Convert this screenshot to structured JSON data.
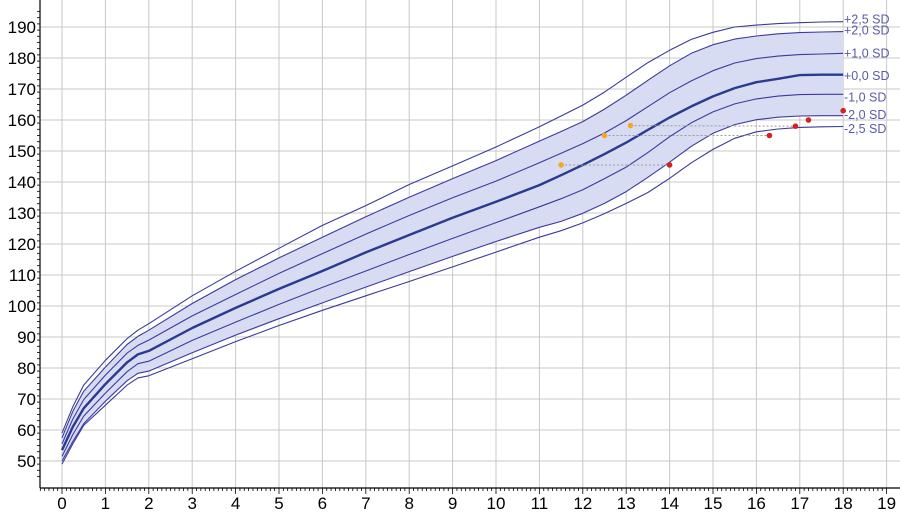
{
  "chart_data": {
    "type": "line",
    "title": "",
    "xlabel": "",
    "ylabel": "",
    "xlim": [
      -0.5,
      19
    ],
    "ylim": [
      45,
      195
    ],
    "x_ticks": [
      "0",
      "1",
      "2",
      "3",
      "4",
      "5",
      "6",
      "7",
      "8",
      "9",
      "10",
      "11",
      "12",
      "13",
      "14",
      "15",
      "16",
      "17",
      "18",
      "19"
    ],
    "y_ticks": [
      "50",
      "60",
      "70",
      "80",
      "90",
      "100",
      "110",
      "120",
      "130",
      "140",
      "150",
      "160",
      "170",
      "180",
      "190"
    ],
    "grid": true,
    "shaded_band": "-2,0 SD to +2,0 SD",
    "colors": {
      "curve": "#3a3a9c",
      "median": "#2a3a90",
      "band": "#d8dcf2",
      "grid": "#c8c8c8",
      "orange_point": "#f5a623",
      "red_point": "#d42020",
      "guide": "#9a9a9a"
    },
    "x": [
      0,
      0.25,
      0.5,
      1,
      1.5,
      1.75,
      2,
      3,
      4,
      5,
      6,
      7,
      8,
      9,
      10,
      11,
      11.5,
      12,
      12.5,
      13,
      13.5,
      14,
      14.5,
      15,
      15.5,
      16,
      16.5,
      17,
      17.5,
      18
    ],
    "series": [
      {
        "name": "+2,5 SD",
        "values": [
          59,
          67.5,
          74.5,
          82.5,
          89.5,
          92.2,
          94.3,
          103.3,
          111.2,
          118.6,
          126,
          132.4,
          139.2,
          145.2,
          151.3,
          157.8,
          161.3,
          164.8,
          169,
          173.8,
          178.5,
          182.5,
          186,
          188.3,
          190,
          190.6,
          191.1,
          191.4,
          191.6,
          191.7
        ]
      },
      {
        "name": "+2,0 SD",
        "values": [
          57.5,
          66,
          72.5,
          80.3,
          87.6,
          90.2,
          92.2,
          100.8,
          108.5,
          115.5,
          122.2,
          128.8,
          135.1,
          141.1,
          146.9,
          153.2,
          156.3,
          159.5,
          163.5,
          168,
          172.8,
          177.5,
          181.5,
          184.3,
          186.1,
          187.1,
          187.8,
          188.2,
          188.4,
          188.5
        ]
      },
      {
        "name": "+1,0 SD",
        "values": [
          55.5,
          63.5,
          69.8,
          77.7,
          84.8,
          87.3,
          89,
          96.8,
          103.7,
          110.5,
          116.9,
          123.2,
          129.2,
          134.9,
          140.3,
          146.2,
          149.3,
          152.4,
          155.8,
          159.8,
          164.3,
          168.8,
          172.6,
          175.9,
          178.4,
          179.8,
          180.6,
          181.1,
          181.3,
          181.5
        ]
      },
      {
        "name": "+0,0 SD",
        "values": [
          53.5,
          61,
          67,
          74.8,
          81.8,
          84.4,
          85.5,
          92.9,
          99.4,
          105.5,
          111.3,
          117.3,
          122.9,
          128.5,
          133.6,
          139,
          142.2,
          145.5,
          149,
          152.7,
          156.8,
          160.8,
          164.4,
          167.6,
          170.3,
          172.2,
          173.3,
          174.5,
          174.6,
          174.6
        ]
      },
      {
        "name": "-1,0 SD",
        "values": [
          51.5,
          58.5,
          64.5,
          71.9,
          78.8,
          81.4,
          82.2,
          88.9,
          94.8,
          100.5,
          106,
          111.3,
          116.6,
          121.8,
          126.9,
          132,
          134.6,
          137.5,
          141.1,
          144.8,
          149.5,
          154.6,
          159.1,
          162.6,
          165.2,
          166.8,
          167.7,
          168.2,
          168.3,
          168.3
        ]
      },
      {
        "name": "-2,0 SD",
        "values": [
          50,
          56.3,
          62,
          69.3,
          75.9,
          78.3,
          79,
          84.9,
          90.6,
          95.9,
          101,
          106.1,
          111.1,
          116,
          120.8,
          125.4,
          127.3,
          129.9,
          133.1,
          136.9,
          141.5,
          146.4,
          151.5,
          155.7,
          158.5,
          160.1,
          160.9,
          161.3,
          161.4,
          161.4
        ]
      },
      {
        "name": "-2,5 SD",
        "values": [
          49,
          55.5,
          61.5,
          68,
          74.5,
          76.8,
          77.5,
          83,
          88.5,
          93.7,
          98.6,
          103.3,
          107.9,
          112.6,
          117.4,
          122.2,
          124.3,
          126.8,
          129.8,
          133.1,
          136.6,
          141.2,
          146.2,
          150.5,
          154.1,
          156.2,
          157.1,
          157.6,
          157.8,
          157.9
        ]
      }
    ],
    "points_orange": [
      {
        "x": 11.5,
        "y": 145.5
      },
      {
        "x": 12.5,
        "y": 155
      },
      {
        "x": 13.1,
        "y": 158.2
      }
    ],
    "points_red": [
      {
        "x": 14,
        "y": 145.5
      },
      {
        "x": 16.3,
        "y": 155
      },
      {
        "x": 16.9,
        "y": 158
      },
      {
        "x": 17.2,
        "y": 160
      },
      {
        "x": 18,
        "y": 163
      }
    ],
    "guides": [
      {
        "from": [
          11.5,
          145.5
        ],
        "to": [
          14,
          145.5
        ]
      },
      {
        "from": [
          12.5,
          155
        ],
        "to": [
          16.3,
          155
        ]
      },
      {
        "from": [
          13.1,
          158.2
        ],
        "to": [
          16.9,
          158
        ]
      }
    ],
    "sd_labels": [
      {
        "text": "+2,5 SD",
        "y": 192.5
      },
      {
        "text": "+2,0 SD",
        "y": 188.8
      },
      {
        "text": "+1,0 SD",
        "y": 181.5
      },
      {
        "text": "+0,0 SD",
        "y": 174.2
      },
      {
        "text": "-1,0 SD",
        "y": 167.2
      },
      {
        "text": "-2,0 SD",
        "y": 161.6
      },
      {
        "text": "-2,5 SD",
        "y": 157.1
      }
    ]
  }
}
